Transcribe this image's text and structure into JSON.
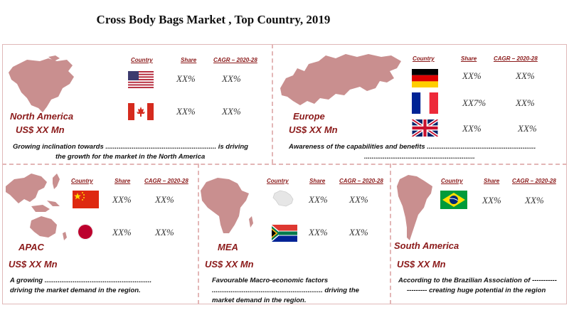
{
  "title": "Cross Body Bags Market , Top Country, 2019",
  "headers": {
    "country": "Country",
    "share": "Share",
    "cagr": "CAGR – 2020-28"
  },
  "regions": {
    "north_america": {
      "name": "North America",
      "value": "US$ XX Mn",
      "desc1": "Growing inclination towards ........................................................... is driving",
      "desc2": "the growth for the market in the North America",
      "countries": [
        {
          "flag": "usa-flag",
          "share": "XX%",
          "cagr": "XX%"
        },
        {
          "flag": "canada-flag",
          "share": "XX%",
          "cagr": "XX%"
        }
      ]
    },
    "europe": {
      "name": "Europe",
      "value": "US$ XX Mn",
      "desc1": "Awareness of the capabilities and benefits ..........................................................",
      "desc2": "...........................................................",
      "countries": [
        {
          "flag": "germany-flag",
          "share": "XX%",
          "cagr": "XX%"
        },
        {
          "flag": "france-flag",
          "share": "XX7%",
          "cagr": "XX%"
        },
        {
          "flag": "uk-flag",
          "share": "XX%",
          "cagr": "XX%"
        }
      ]
    },
    "apac": {
      "name": "APAC",
      "value": "US$ XX Mn",
      "desc1": "A growing .........................................................",
      "desc2": "driving the market demand in the region.",
      "countries": [
        {
          "flag": "china-flag",
          "share": "XX%",
          "cagr": "XX%"
        },
        {
          "flag": "japan-flag",
          "share": "XX%",
          "cagr": "XX%"
        }
      ]
    },
    "mea": {
      "name": "MEA",
      "value": "US$ XX Mn",
      "desc1": "Favourable Macro-economic factors",
      "desc2": "........................................................... driving the",
      "desc3": "market demand in the region.",
      "countries": [
        {
          "flag": "saudi-arabia-map-icon",
          "share": "XX%",
          "cagr": "XX%"
        },
        {
          "flag": "south-africa-flag",
          "share": "XX%",
          "cagr": "XX%"
        }
      ]
    },
    "south_america": {
      "name": "South America",
      "value": "US$ XX Mn",
      "desc1": "According to the Brazilian Association of -----------",
      "desc2": "--------- creating huge potential in the region",
      "countries": [
        {
          "flag": "brazil-flag",
          "share": "XX%",
          "cagr": "XX%"
        }
      ]
    }
  },
  "colors": {
    "accent": "#8b1a1a",
    "map": "#c98f8f",
    "divider": "#e3b6b6"
  }
}
